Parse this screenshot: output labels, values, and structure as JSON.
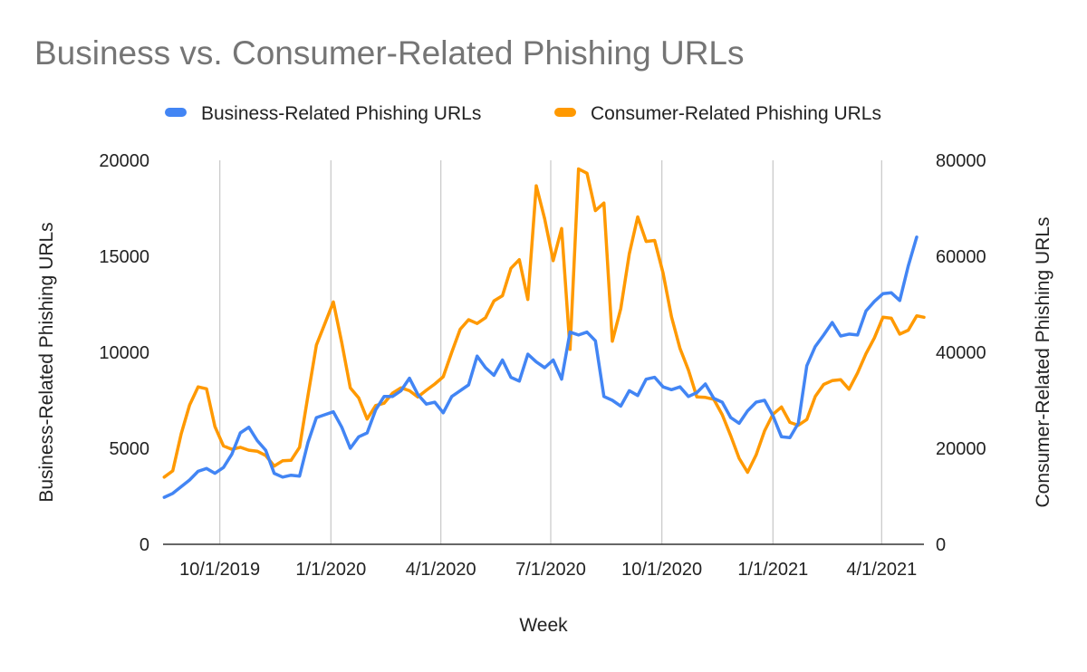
{
  "chart_data": {
    "type": "line",
    "title": "Business vs. Consumer-Related Phishing URLs",
    "xlabel": "Week",
    "ylabel_left": "Business-Related Phishing URLs",
    "ylabel_right": "Consumer-Related Phishing URLs",
    "x_start": "2019-08-15",
    "x_end": "2021-05-06",
    "x_ticks": [
      {
        "date": "2019-10-01",
        "label": "10/1/2019"
      },
      {
        "date": "2020-01-01",
        "label": "1/1/2020"
      },
      {
        "date": "2020-04-01",
        "label": "4/1/2020"
      },
      {
        "date": "2020-07-01",
        "label": "7/1/2020"
      },
      {
        "date": "2020-10-01",
        "label": "10/1/2020"
      },
      {
        "date": "2021-01-01",
        "label": "1/1/2021"
      },
      {
        "date": "2021-04-01",
        "label": "4/1/2021"
      }
    ],
    "ylim_left": [
      0,
      20000
    ],
    "yticks_left": [
      0,
      5000,
      10000,
      15000,
      20000
    ],
    "ylim_right": [
      0,
      80000
    ],
    "yticks_right": [
      0,
      20000,
      40000,
      60000,
      80000
    ],
    "grid": "vertical",
    "legend_position": "top",
    "series": [
      {
        "name": "Business-Related Phishing URLs",
        "axis": "left",
        "color": "#4285F4",
        "points": [
          [
            "2019-08-16",
            2450
          ],
          [
            "2019-08-23",
            2650
          ],
          [
            "2019-08-30",
            3000
          ],
          [
            "2019-09-06",
            3350
          ],
          [
            "2019-09-13",
            3800
          ],
          [
            "2019-09-20",
            3950
          ],
          [
            "2019-09-27",
            3700
          ],
          [
            "2019-10-04",
            4000
          ],
          [
            "2019-10-11",
            4700
          ],
          [
            "2019-10-18",
            5800
          ],
          [
            "2019-10-25",
            6100
          ],
          [
            "2019-11-01",
            5400
          ],
          [
            "2019-11-08",
            4900
          ],
          [
            "2019-11-15",
            3700
          ],
          [
            "2019-11-22",
            3500
          ],
          [
            "2019-11-29",
            3600
          ],
          [
            "2019-12-06",
            3550
          ],
          [
            "2019-12-13",
            5300
          ],
          [
            "2019-12-20",
            6600
          ],
          [
            "2019-12-27",
            6750
          ],
          [
            "2020-01-03",
            6900
          ],
          [
            "2020-01-10",
            6100
          ],
          [
            "2020-01-17",
            5000
          ],
          [
            "2020-01-24",
            5600
          ],
          [
            "2020-01-31",
            5800
          ],
          [
            "2020-02-07",
            7000
          ],
          [
            "2020-02-14",
            7700
          ],
          [
            "2020-02-21",
            7700
          ],
          [
            "2020-02-28",
            8000
          ],
          [
            "2020-03-06",
            8650
          ],
          [
            "2020-03-13",
            7800
          ],
          [
            "2020-03-20",
            7300
          ],
          [
            "2020-03-27",
            7400
          ],
          [
            "2020-04-03",
            6850
          ],
          [
            "2020-04-10",
            7700
          ],
          [
            "2020-04-17",
            8000
          ],
          [
            "2020-04-24",
            8300
          ],
          [
            "2020-05-01",
            9800
          ],
          [
            "2020-05-08",
            9200
          ],
          [
            "2020-05-15",
            8800
          ],
          [
            "2020-05-22",
            9600
          ],
          [
            "2020-05-29",
            8700
          ],
          [
            "2020-06-05",
            8500
          ],
          [
            "2020-06-12",
            9900
          ],
          [
            "2020-06-19",
            9500
          ],
          [
            "2020-06-26",
            9200
          ],
          [
            "2020-07-03",
            9600
          ],
          [
            "2020-07-10",
            8600
          ],
          [
            "2020-07-17",
            11050
          ],
          [
            "2020-07-24",
            10900
          ],
          [
            "2020-07-31",
            11050
          ],
          [
            "2020-08-07",
            10600
          ],
          [
            "2020-08-14",
            7700
          ],
          [
            "2020-08-21",
            7500
          ],
          [
            "2020-08-28",
            7200
          ],
          [
            "2020-09-04",
            8000
          ],
          [
            "2020-09-11",
            7750
          ],
          [
            "2020-09-18",
            8600
          ],
          [
            "2020-09-25",
            8700
          ],
          [
            "2020-10-02",
            8200
          ],
          [
            "2020-10-09",
            8050
          ],
          [
            "2020-10-16",
            8200
          ],
          [
            "2020-10-23",
            7700
          ],
          [
            "2020-10-30",
            7900
          ],
          [
            "2020-11-06",
            8350
          ],
          [
            "2020-11-13",
            7600
          ],
          [
            "2020-11-20",
            7400
          ],
          [
            "2020-11-27",
            6600
          ],
          [
            "2020-12-04",
            6300
          ],
          [
            "2020-12-11",
            6950
          ],
          [
            "2020-12-18",
            7400
          ],
          [
            "2020-12-25",
            7500
          ],
          [
            "2021-01-01",
            6700
          ],
          [
            "2021-01-08",
            5600
          ],
          [
            "2021-01-15",
            5550
          ],
          [
            "2021-01-22",
            6300
          ],
          [
            "2021-01-29",
            9300
          ],
          [
            "2021-02-05",
            10300
          ],
          [
            "2021-02-12",
            10900
          ],
          [
            "2021-02-19",
            11550
          ],
          [
            "2021-02-26",
            10850
          ],
          [
            "2021-03-05",
            10950
          ],
          [
            "2021-03-12",
            10900
          ],
          [
            "2021-03-19",
            12150
          ],
          [
            "2021-03-26",
            12650
          ],
          [
            "2021-04-02",
            13050
          ],
          [
            "2021-04-09",
            13100
          ],
          [
            "2021-04-16",
            12700
          ],
          [
            "2021-04-23",
            14500
          ],
          [
            "2021-04-30",
            16000
          ]
        ]
      },
      {
        "name": "Consumer-Related Phishing URLs",
        "axis": "right",
        "color": "#FF9900",
        "points": [
          [
            "2019-08-16",
            14000
          ],
          [
            "2019-08-23",
            15300
          ],
          [
            "2019-08-30",
            23000
          ],
          [
            "2019-09-06",
            29000
          ],
          [
            "2019-09-13",
            32800
          ],
          [
            "2019-09-20",
            32400
          ],
          [
            "2019-09-27",
            24500
          ],
          [
            "2019-10-04",
            20500
          ],
          [
            "2019-10-11",
            19800
          ],
          [
            "2019-10-18",
            20200
          ],
          [
            "2019-10-25",
            19600
          ],
          [
            "2019-11-01",
            19400
          ],
          [
            "2019-11-08",
            18500
          ],
          [
            "2019-11-15",
            16300
          ],
          [
            "2019-11-22",
            17400
          ],
          [
            "2019-11-29",
            17500
          ],
          [
            "2019-12-06",
            20200
          ],
          [
            "2019-12-13",
            31000
          ],
          [
            "2019-12-20",
            41500
          ],
          [
            "2019-12-27",
            46000
          ],
          [
            "2020-01-03",
            50500
          ],
          [
            "2020-01-10",
            42000
          ],
          [
            "2020-01-17",
            32600
          ],
          [
            "2020-01-24",
            30500
          ],
          [
            "2020-01-31",
            26100
          ],
          [
            "2020-02-07",
            28900
          ],
          [
            "2020-02-14",
            29400
          ],
          [
            "2020-02-21",
            31500
          ],
          [
            "2020-02-28",
            32600
          ],
          [
            "2020-03-06",
            32000
          ],
          [
            "2020-03-13",
            30700
          ],
          [
            "2020-03-20",
            32100
          ],
          [
            "2020-03-27",
            33400
          ],
          [
            "2020-04-03",
            34900
          ],
          [
            "2020-04-10",
            40000
          ],
          [
            "2020-04-17",
            44800
          ],
          [
            "2020-04-24",
            46800
          ],
          [
            "2020-05-01",
            46000
          ],
          [
            "2020-05-08",
            47200
          ],
          [
            "2020-05-15",
            50700
          ],
          [
            "2020-05-22",
            51800
          ],
          [
            "2020-05-29",
            57500
          ],
          [
            "2020-06-05",
            59300
          ],
          [
            "2020-06-12",
            51000
          ],
          [
            "2020-06-19",
            74700
          ],
          [
            "2020-06-26",
            67800
          ],
          [
            "2020-07-03",
            59100
          ],
          [
            "2020-07-10",
            65800
          ],
          [
            "2020-07-17",
            40600
          ],
          [
            "2020-07-24",
            78200
          ],
          [
            "2020-07-31",
            77300
          ],
          [
            "2020-08-07",
            69500
          ],
          [
            "2020-08-14",
            71100
          ],
          [
            "2020-08-21",
            42300
          ],
          [
            "2020-08-28",
            49100
          ],
          [
            "2020-09-04",
            60500
          ],
          [
            "2020-09-11",
            68200
          ],
          [
            "2020-09-18",
            63100
          ],
          [
            "2020-09-25",
            63300
          ],
          [
            "2020-10-02",
            56500
          ],
          [
            "2020-10-09",
            47400
          ],
          [
            "2020-10-16",
            40800
          ],
          [
            "2020-10-23",
            36300
          ],
          [
            "2020-10-30",
            30700
          ],
          [
            "2020-11-06",
            30600
          ],
          [
            "2020-11-13",
            30200
          ],
          [
            "2020-11-20",
            27000
          ],
          [
            "2020-11-27",
            22600
          ],
          [
            "2020-12-04",
            17900
          ],
          [
            "2020-12-11",
            15000
          ],
          [
            "2020-12-18",
            18600
          ],
          [
            "2020-12-25",
            23600
          ],
          [
            "2021-01-01",
            27100
          ],
          [
            "2021-01-08",
            28600
          ],
          [
            "2021-01-15",
            25400
          ],
          [
            "2021-01-22",
            24800
          ],
          [
            "2021-01-29",
            26000
          ],
          [
            "2021-02-05",
            30800
          ],
          [
            "2021-02-12",
            33300
          ],
          [
            "2021-02-19",
            34100
          ],
          [
            "2021-02-26",
            34300
          ],
          [
            "2021-03-05",
            32300
          ],
          [
            "2021-03-12",
            35700
          ],
          [
            "2021-03-19",
            39700
          ],
          [
            "2021-03-26",
            43000
          ],
          [
            "2021-04-02",
            47300
          ],
          [
            "2021-04-09",
            47100
          ],
          [
            "2021-04-16",
            43800
          ],
          [
            "2021-04-23",
            44600
          ],
          [
            "2021-04-30",
            47600
          ],
          [
            "2021-05-06",
            47300
          ]
        ]
      }
    ]
  }
}
